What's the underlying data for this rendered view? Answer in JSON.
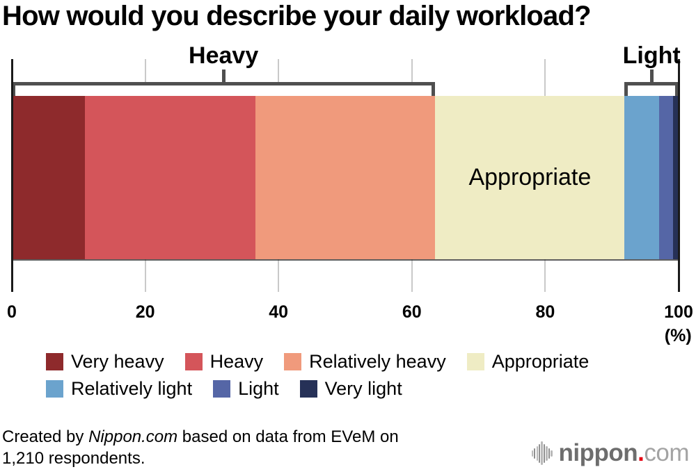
{
  "title": "How would you describe your daily workload?",
  "chart_data": {
    "type": "bar",
    "subtype": "horizontal_stacked_single_bar",
    "title": "How would you describe your daily workload?",
    "unit_label": "(%)",
    "xlim": [
      0,
      100
    ],
    "x_ticks": [
      0,
      20,
      40,
      60,
      80,
      100
    ],
    "grid": true,
    "legend_position": "bottom",
    "segments": [
      {
        "label": "Very heavy",
        "value": 11.0,
        "color": "#8e2a2c"
      },
      {
        "label": "Heavy",
        "value": 25.5,
        "color": "#d4555a"
      },
      {
        "label": "Relatively heavy",
        "value": 27.0,
        "color": "#f09a7c"
      },
      {
        "label": "Appropriate",
        "value": 28.4,
        "color": "#efecc4",
        "label_in_bar": true
      },
      {
        "label": "Relatively light",
        "value": 5.2,
        "color": "#6ba3cd"
      },
      {
        "label": "Light",
        "value": 2.1,
        "color": "#5566a6"
      },
      {
        "label": "Very light",
        "value": 0.8,
        "color": "#263157"
      }
    ],
    "group_brackets": [
      {
        "label": "Heavy",
        "from_pct": 0,
        "to_pct": 63.5
      },
      {
        "label": "Light",
        "from_pct": 91.9,
        "to_pct": 100
      }
    ],
    "legend_rows": [
      [
        0,
        1,
        2,
        3
      ],
      [
        4,
        5,
        6
      ]
    ]
  },
  "footer": {
    "credit": {
      "part1": "Created by ",
      "brand": "Nippon.com",
      "part2": " based on data from EVeM on",
      "line2": "1,210 respondents."
    },
    "logo": {
      "icon": "audio-wave-icon",
      "name": "nippon",
      "dot": ".",
      "tld": "com"
    }
  },
  "colors": {
    "bracket": "#4f4f4f",
    "gridline": "#c9c9c9",
    "axis_end_line": "#1a1a1a",
    "logo_dot": "#e60012",
    "logo_name": "#6d6d6d",
    "logo_tld": "#a3a3a3"
  }
}
